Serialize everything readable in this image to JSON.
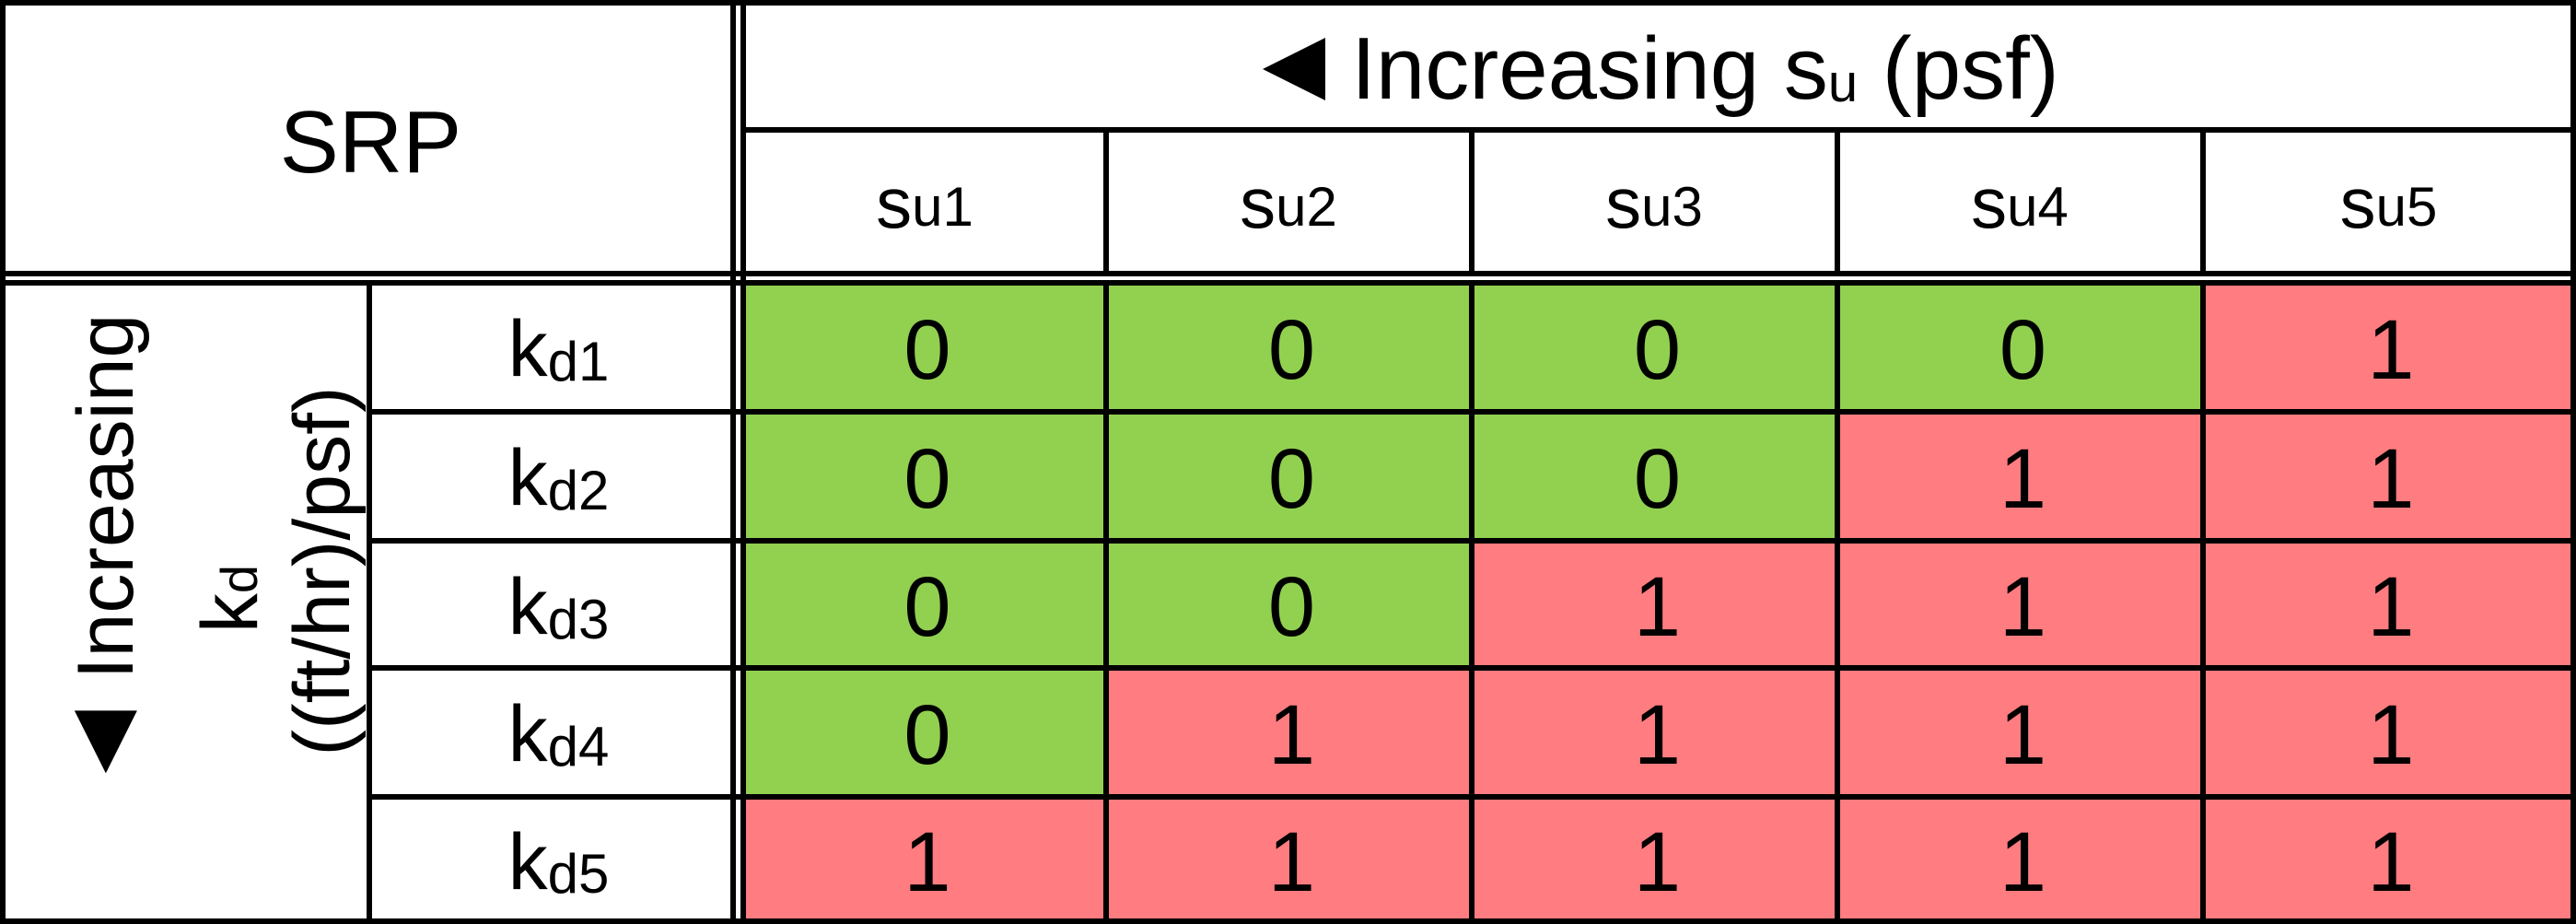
{
  "corner_label": "SRP",
  "column_axis": {
    "prefix": "Increasing ",
    "var": "s",
    "sub": "u",
    "unit": " (psf)",
    "arrow": "left-triangle"
  },
  "row_axis": {
    "line1": "Increasing",
    "line2_var": "k",
    "line2_sub": "d",
    "line3": "((ft/hr)/psf)",
    "arrow": "down-triangle"
  },
  "columns": [
    {
      "var": "s",
      "sub": "u1"
    },
    {
      "var": "s",
      "sub": "u2"
    },
    {
      "var": "s",
      "sub": "u3"
    },
    {
      "var": "s",
      "sub": "u4"
    },
    {
      "var": "s",
      "sub": "u5"
    }
  ],
  "rows": [
    {
      "var": "k",
      "sub": "d1",
      "values": [
        "0",
        "0",
        "0",
        "0",
        "1"
      ]
    },
    {
      "var": "k",
      "sub": "d2",
      "values": [
        "0",
        "0",
        "0",
        "1",
        "1"
      ]
    },
    {
      "var": "k",
      "sub": "d3",
      "values": [
        "0",
        "0",
        "1",
        "1",
        "1"
      ]
    },
    {
      "var": "k",
      "sub": "d4",
      "values": [
        "0",
        "1",
        "1",
        "1",
        "1"
      ]
    },
    {
      "var": "k",
      "sub": "d5",
      "values": [
        "1",
        "1",
        "1",
        "1",
        "1"
      ]
    }
  ],
  "colors": {
    "zero": "#92d050",
    "one": "#ff7c80"
  }
}
